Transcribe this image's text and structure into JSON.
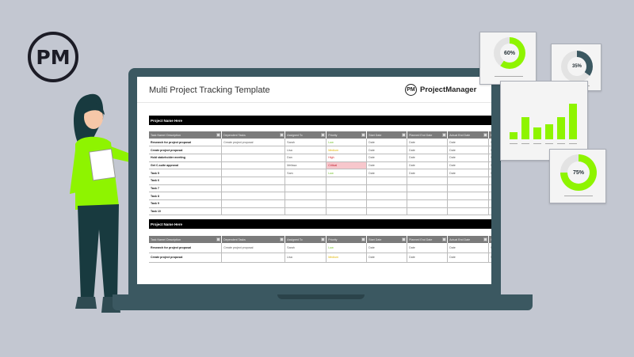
{
  "brand": {
    "logo_text": "PM",
    "name": "ProjectManager"
  },
  "sheet": {
    "title": "Multi Project Tracking Template",
    "columns": [
      "Task Name/ Description",
      "Dependent Tasks",
      "Assigned To",
      "Priority",
      "Start Date",
      "Planned End Date",
      "Actual End Date",
      "Planned"
    ],
    "projects": [
      {
        "name": "Project Name Here",
        "rows": [
          [
            "Research for project proposal",
            "Create project proposal",
            "Sarah",
            "Low",
            "Date",
            "Date",
            "Date",
            "$"
          ],
          [
            "Create project proposal",
            "",
            "Lisa",
            "Medium",
            "Date",
            "Date",
            "Date",
            "$"
          ],
          [
            "Hold stakeholder meeting",
            "",
            "Dan",
            "High",
            "Date",
            "Date",
            "Date",
            "$"
          ],
          [
            "Get C-suite approval",
            "",
            "Melissa",
            "Critical",
            "Date",
            "Date",
            "Date",
            "$"
          ],
          [
            "Task 5",
            "",
            "Sam",
            "Low",
            "Date",
            "Date",
            "Date",
            "$"
          ],
          [
            "Task 6",
            "",
            "",
            "",
            "",
            "",
            "",
            ""
          ],
          [
            "Task 7",
            "",
            "",
            "",
            "",
            "",
            "",
            ""
          ],
          [
            "Task 8",
            "",
            "",
            "",
            "",
            "",
            "",
            ""
          ],
          [
            "Task 9",
            "",
            "",
            "",
            "",
            "",
            "",
            ""
          ],
          [
            "Task 10",
            "",
            "",
            "",
            "",
            "",
            "",
            ""
          ]
        ]
      },
      {
        "name": "Project Name Here",
        "rows": [
          [
            "Research for project proposal",
            "Create project proposal",
            "Sarah",
            "Low",
            "Date",
            "Date",
            "Date",
            "$"
          ],
          [
            "Create project proposal",
            "",
            "Lisa",
            "Medium",
            "Date",
            "Date",
            "Date",
            "$"
          ]
        ]
      }
    ]
  },
  "widgets": {
    "donuts": [
      {
        "label": "60%",
        "value": 60,
        "color": "#8ef400"
      },
      {
        "label": "35%",
        "value": 35,
        "color": "#3b5861"
      },
      {
        "label": "75%",
        "value": 75,
        "color": "#8ef400"
      }
    ],
    "bars": [
      9,
      28,
      15,
      19,
      28,
      45
    ],
    "accent": "#8ef400"
  }
}
